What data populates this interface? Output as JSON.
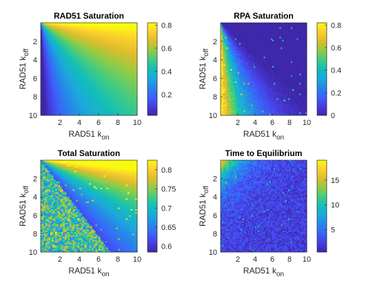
{
  "chart_data": [
    {
      "type": "heatmap",
      "title": "RAD51 Saturation",
      "xlabel": "RAD51 k",
      "xlabel_sub": "on",
      "ylabel": "RAD51 k",
      "ylabel_sub": "off",
      "xlim": [
        0,
        10
      ],
      "ylim": [
        0,
        10
      ],
      "xticks": [
        "2",
        "4",
        "6",
        "8",
        "10"
      ],
      "yticks": [
        "2",
        "4",
        "6",
        "8",
        "10"
      ],
      "x_tick_values": [
        2,
        4,
        6,
        8,
        10
      ],
      "y_tick_values": [
        2,
        4,
        6,
        8,
        10
      ],
      "colorbar": {
        "min": 0.02,
        "max": 0.82,
        "ticks": [
          0.2,
          0.4,
          0.6,
          0.8
        ],
        "tick_labels": [
          "0.2",
          "0.4",
          "0.6",
          "0.8"
        ]
      },
      "trend": "high (~0.8) when k_on is large and k_off small; falls toward ~0.05 when k_on is small and k_off large",
      "model": {
        "kind": "sat",
        "noise": 0.0
      }
    },
    {
      "type": "heatmap",
      "title": "RPA Saturation",
      "xlabel": "RAD51 k",
      "xlabel_sub": "on",
      "ylabel": "RAD51 k",
      "ylabel_sub": "off",
      "xlim": [
        0,
        10
      ],
      "ylim": [
        0,
        10
      ],
      "xticks": [
        "2",
        "4",
        "6",
        "8",
        "10"
      ],
      "yticks": [
        "2",
        "4",
        "6",
        "8",
        "10"
      ],
      "x_tick_values": [
        2,
        4,
        6,
        8,
        10
      ],
      "y_tick_values": [
        2,
        4,
        6,
        8,
        10
      ],
      "colorbar": {
        "min": 0.0,
        "max": 0.82,
        "ticks": [
          0,
          0.2,
          0.4,
          0.6,
          0.8
        ],
        "tick_labels": [
          "0",
          "0.2",
          "0.4",
          "0.6",
          "0.8"
        ]
      },
      "trend": "near 0 for most of the map; rises to ~0.8 when k_on is small and k_off large",
      "model": {
        "kind": "rpa",
        "noise": 0.12
      }
    },
    {
      "type": "heatmap",
      "title": "Total Saturation",
      "xlabel": "RAD51 k",
      "xlabel_sub": "on",
      "ylabel": "RAD51 k",
      "ylabel_sub": "off",
      "xlim": [
        0,
        10
      ],
      "ylim": [
        0,
        10
      ],
      "xticks": [
        "2",
        "4",
        "6",
        "8",
        "10"
      ],
      "yticks": [
        "2",
        "4",
        "6",
        "8",
        "10"
      ],
      "x_tick_values": [
        2,
        4,
        6,
        8,
        10
      ],
      "y_tick_values": [
        2,
        4,
        6,
        8,
        10
      ],
      "colorbar": {
        "min": 0.585,
        "max": 0.825,
        "ticks": [
          0.6,
          0.65,
          0.7,
          0.75,
          0.8
        ],
        "tick_labels": [
          "0.6",
          "0.65",
          "0.7",
          "0.75",
          "0.8"
        ]
      },
      "trend": "~0.8 at large k_on / small k_off, dips to ~0.6 along the diagonal transition, noisy ~0.7-0.8 at small k_on / large k_off",
      "model": {
        "kind": "total",
        "noise": 0.25
      }
    },
    {
      "type": "heatmap",
      "title": "Time to Equilibrium",
      "xlabel": "RAD51 k",
      "xlabel_sub": "on",
      "ylabel": "RAD51 k",
      "ylabel_sub": "off",
      "xlim": [
        0,
        10
      ],
      "ylim": [
        0,
        10
      ],
      "xticks": [
        "2",
        "4",
        "6",
        "8",
        "10"
      ],
      "yticks": [
        "2",
        "4",
        "6",
        "8",
        "10"
      ],
      "x_tick_values": [
        2,
        4,
        6,
        8,
        10
      ],
      "y_tick_values": [
        2,
        4,
        6,
        8,
        10
      ],
      "colorbar": {
        "min": 0.5,
        "max": 19,
        "ticks": [
          5,
          10,
          15
        ],
        "tick_labels": [
          "5",
          "10",
          "15"
        ]
      },
      "trend": "mostly ~2-5 with noise; largest (~15-19) when both k_on and k_off are small (top-left corner)",
      "model": {
        "kind": "time",
        "noise": 0.3
      }
    }
  ]
}
